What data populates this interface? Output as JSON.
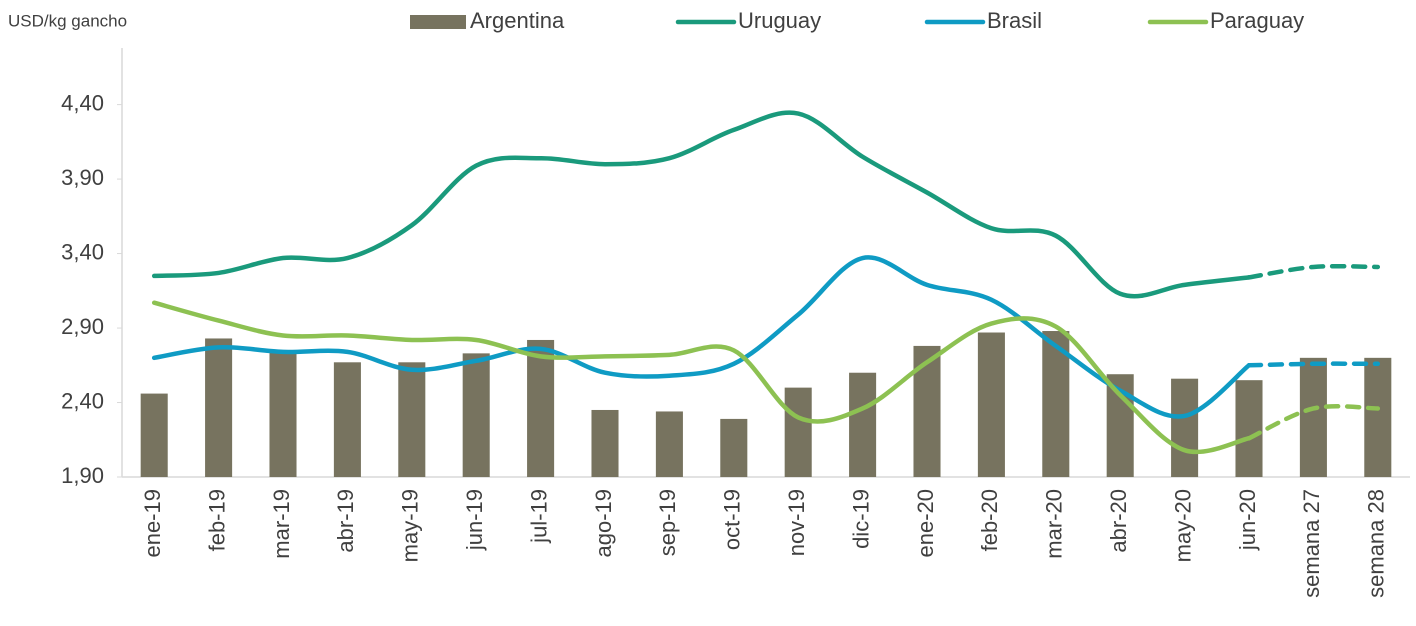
{
  "chart_data": {
    "type": "combo",
    "y_axis_label": "USD/kg gancho",
    "categories": [
      "ene-19",
      "feb-19",
      "mar-19",
      "abr-19",
      "may-19",
      "jun-19",
      "jul-19",
      "ago-19",
      "sep-19",
      "oct-19",
      "nov-19",
      "dic-19",
      "ene-20",
      "feb-20",
      "mar-20",
      "abr-20",
      "may-20",
      "jun-20",
      "semana 27",
      "semana 28"
    ],
    "series": [
      {
        "name": "Argentina",
        "type": "bar",
        "color": "#77735f",
        "values": [
          2.46,
          2.83,
          2.75,
          2.67,
          2.67,
          2.73,
          2.82,
          2.35,
          2.34,
          2.29,
          2.5,
          2.6,
          2.78,
          2.87,
          2.88,
          2.59,
          2.56,
          2.55,
          2.7,
          2.7
        ]
      },
      {
        "name": "Uruguay",
        "type": "line",
        "color": "#1a9a7c",
        "values": [
          3.25,
          3.27,
          3.37,
          3.37,
          3.59,
          3.99,
          4.04,
          4.0,
          4.04,
          4.23,
          4.34,
          4.05,
          3.81,
          3.57,
          3.52,
          3.13,
          3.19,
          3.24,
          3.31,
          3.31
        ]
      },
      {
        "name": "Brasil",
        "type": "line",
        "color": "#0f9bc4",
        "values": [
          2.7,
          2.77,
          2.74,
          2.74,
          2.62,
          2.68,
          2.76,
          2.6,
          2.58,
          2.66,
          2.99,
          3.37,
          3.19,
          3.09,
          2.78,
          2.48,
          2.31,
          2.65,
          2.66,
          2.66
        ]
      },
      {
        "name": "Paraguay",
        "type": "line",
        "color": "#8dc152",
        "values": [
          3.07,
          2.95,
          2.85,
          2.85,
          2.82,
          2.82,
          2.71,
          2.71,
          2.72,
          2.75,
          2.3,
          2.36,
          2.67,
          2.93,
          2.91,
          2.45,
          2.08,
          2.16,
          2.36,
          2.36
        ]
      }
    ],
    "dashed_from": 17,
    "ylim": [
      1.9,
      4.78
    ],
    "yticks": [
      {
        "value": 1.9,
        "label": "1,90"
      },
      {
        "value": 2.4,
        "label": "2,40"
      },
      {
        "value": 2.9,
        "label": "2,90"
      },
      {
        "value": 3.4,
        "label": "3,40"
      },
      {
        "value": 3.9,
        "label": "3,90"
      },
      {
        "value": 4.4,
        "label": "4,40"
      }
    ],
    "grid": false,
    "legend": "top"
  }
}
